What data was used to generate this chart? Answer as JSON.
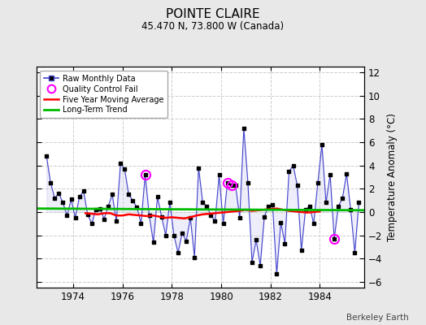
{
  "title": "POINTE CLAIRE",
  "subtitle": "45.470 N, 73.800 W (Canada)",
  "ylabel": "Temperature Anomaly (°C)",
  "credit": "Berkeley Earth",
  "ylim": [
    -6.5,
    12.5
  ],
  "yticks": [
    -6,
    -4,
    -2,
    0,
    2,
    4,
    6,
    8,
    10,
    12
  ],
  "xlim_start": 1972.5,
  "xlim_end": 1985.8,
  "xticks": [
    1974,
    1976,
    1978,
    1980,
    1982,
    1984
  ],
  "background_color": "#e8e8e8",
  "plot_bg_color": "#ffffff",
  "grid_color": "#cccccc",
  "line_color": "#4444cc",
  "line_fill_color": "#aaaaee",
  "dot_color": "#000000",
  "ma_color": "#ff0000",
  "trend_color": "#00bb00",
  "qc_color": "#ff00ff",
  "raw_data": [
    [
      1972.917,
      4.8
    ],
    [
      1973.083,
      2.5
    ],
    [
      1973.25,
      1.2
    ],
    [
      1973.417,
      1.6
    ],
    [
      1973.583,
      0.8
    ],
    [
      1973.75,
      -0.3
    ],
    [
      1973.917,
      1.1
    ],
    [
      1974.083,
      -0.5
    ],
    [
      1974.25,
      1.3
    ],
    [
      1974.417,
      1.8
    ],
    [
      1974.583,
      -0.2
    ],
    [
      1974.75,
      -1.0
    ],
    [
      1974.917,
      0.2
    ],
    [
      1975.083,
      0.3
    ],
    [
      1975.25,
      -0.6
    ],
    [
      1975.417,
      0.5
    ],
    [
      1975.583,
      1.5
    ],
    [
      1975.75,
      -0.8
    ],
    [
      1975.917,
      4.2
    ],
    [
      1976.083,
      3.7
    ],
    [
      1976.25,
      1.5
    ],
    [
      1976.417,
      1.0
    ],
    [
      1976.583,
      0.4
    ],
    [
      1976.75,
      -1.0
    ],
    [
      1976.917,
      3.2
    ],
    [
      1977.083,
      -0.3
    ],
    [
      1977.25,
      -2.6
    ],
    [
      1977.417,
      1.3
    ],
    [
      1977.583,
      -0.4
    ],
    [
      1977.75,
      -2.0
    ],
    [
      1977.917,
      0.8
    ],
    [
      1978.083,
      -2.0
    ],
    [
      1978.25,
      -3.5
    ],
    [
      1978.417,
      -1.8
    ],
    [
      1978.583,
      -2.5
    ],
    [
      1978.75,
      -0.5
    ],
    [
      1978.917,
      -3.9
    ],
    [
      1979.083,
      3.8
    ],
    [
      1979.25,
      0.8
    ],
    [
      1979.417,
      0.5
    ],
    [
      1979.583,
      -0.3
    ],
    [
      1979.75,
      -0.8
    ],
    [
      1979.917,
      3.2
    ],
    [
      1980.083,
      -1.0
    ],
    [
      1980.25,
      2.5
    ],
    [
      1980.417,
      2.3
    ],
    [
      1980.583,
      2.3
    ],
    [
      1980.75,
      -0.5
    ],
    [
      1980.917,
      7.2
    ],
    [
      1981.083,
      2.5
    ],
    [
      1981.25,
      -4.3
    ],
    [
      1981.417,
      -2.4
    ],
    [
      1981.583,
      -4.6
    ],
    [
      1981.75,
      -0.4
    ],
    [
      1981.917,
      0.5
    ],
    [
      1982.083,
      0.6
    ],
    [
      1982.25,
      -5.3
    ],
    [
      1982.417,
      -0.9
    ],
    [
      1982.583,
      -2.7
    ],
    [
      1982.75,
      3.5
    ],
    [
      1982.917,
      4.0
    ],
    [
      1983.083,
      2.3
    ],
    [
      1983.25,
      -3.3
    ],
    [
      1983.417,
      0.2
    ],
    [
      1983.583,
      0.5
    ],
    [
      1983.75,
      -1.0
    ],
    [
      1983.917,
      2.5
    ],
    [
      1984.083,
      5.8
    ],
    [
      1984.25,
      0.8
    ],
    [
      1984.417,
      3.2
    ],
    [
      1984.583,
      -2.3
    ],
    [
      1984.75,
      0.5
    ],
    [
      1984.917,
      1.2
    ],
    [
      1985.083,
      3.3
    ],
    [
      1985.25,
      0.2
    ],
    [
      1985.417,
      -3.5
    ],
    [
      1985.583,
      0.8
    ]
  ],
  "qc_points": [
    [
      1976.917,
      3.2
    ],
    [
      1980.25,
      2.5
    ],
    [
      1980.417,
      2.3
    ],
    [
      1984.583,
      -2.3
    ]
  ],
  "moving_avg": [
    [
      1974.5,
      -0.1
    ],
    [
      1974.75,
      -0.15
    ],
    [
      1975.0,
      -0.2
    ],
    [
      1975.25,
      -0.1
    ],
    [
      1975.5,
      -0.1
    ],
    [
      1975.75,
      -0.3
    ],
    [
      1976.0,
      -0.3
    ],
    [
      1976.25,
      -0.2
    ],
    [
      1976.5,
      -0.25
    ],
    [
      1976.75,
      -0.3
    ],
    [
      1977.0,
      -0.35
    ],
    [
      1977.25,
      -0.3
    ],
    [
      1977.5,
      -0.4
    ],
    [
      1977.75,
      -0.5
    ],
    [
      1978.0,
      -0.45
    ],
    [
      1978.25,
      -0.5
    ],
    [
      1978.5,
      -0.55
    ],
    [
      1978.75,
      -0.45
    ],
    [
      1979.0,
      -0.3
    ],
    [
      1979.25,
      -0.2
    ],
    [
      1979.5,
      -0.15
    ],
    [
      1979.75,
      -0.1
    ],
    [
      1980.0,
      -0.05
    ],
    [
      1980.25,
      0.0
    ],
    [
      1980.5,
      0.05
    ],
    [
      1980.75,
      0.1
    ],
    [
      1981.0,
      0.2
    ],
    [
      1981.25,
      0.1
    ],
    [
      1981.5,
      0.15
    ],
    [
      1981.75,
      0.2
    ],
    [
      1982.0,
      0.25
    ],
    [
      1982.25,
      0.3
    ],
    [
      1982.5,
      0.2
    ],
    [
      1982.75,
      0.1
    ],
    [
      1983.0,
      0.05
    ],
    [
      1983.25,
      0.0
    ],
    [
      1983.5,
      -0.05
    ],
    [
      1983.75,
      0.0
    ],
    [
      1984.0,
      0.05
    ]
  ],
  "trend_x": [
    1972.5,
    1985.8
  ],
  "trend_y": [
    0.3,
    0.15
  ]
}
